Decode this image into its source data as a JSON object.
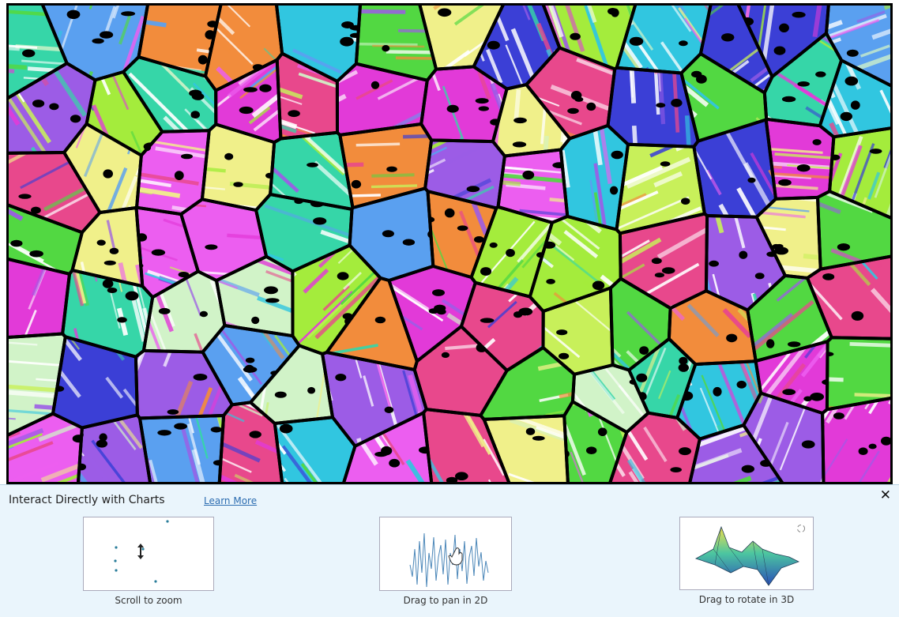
{
  "banner": {
    "title": "Interact Directly with Charts",
    "learn_more": "Learn More",
    "close_icon": "close-icon"
  },
  "tips": [
    {
      "caption": "Scroll to zoom",
      "icon": "scroll-zoom-icon"
    },
    {
      "caption": "Drag to pan in 2D",
      "icon": "pan-hand-icon"
    },
    {
      "caption": "Drag to rotate in 3D",
      "icon": "rotate-3d-icon"
    }
  ],
  "image": {
    "description_icon": "grain-orientation-map-icon",
    "boundary_color": "#000000",
    "palette": [
      "#e23ad8",
      "#3b3fd6",
      "#31c6e0",
      "#52d842",
      "#c8f05a",
      "#f0f08a",
      "#e8488c",
      "#a4ec3c",
      "#9c5ce6",
      "#36d6a8",
      "#f28c3c",
      "#5aa0f0",
      "#d1f3c8",
      "#ec5ef0"
    ]
  }
}
